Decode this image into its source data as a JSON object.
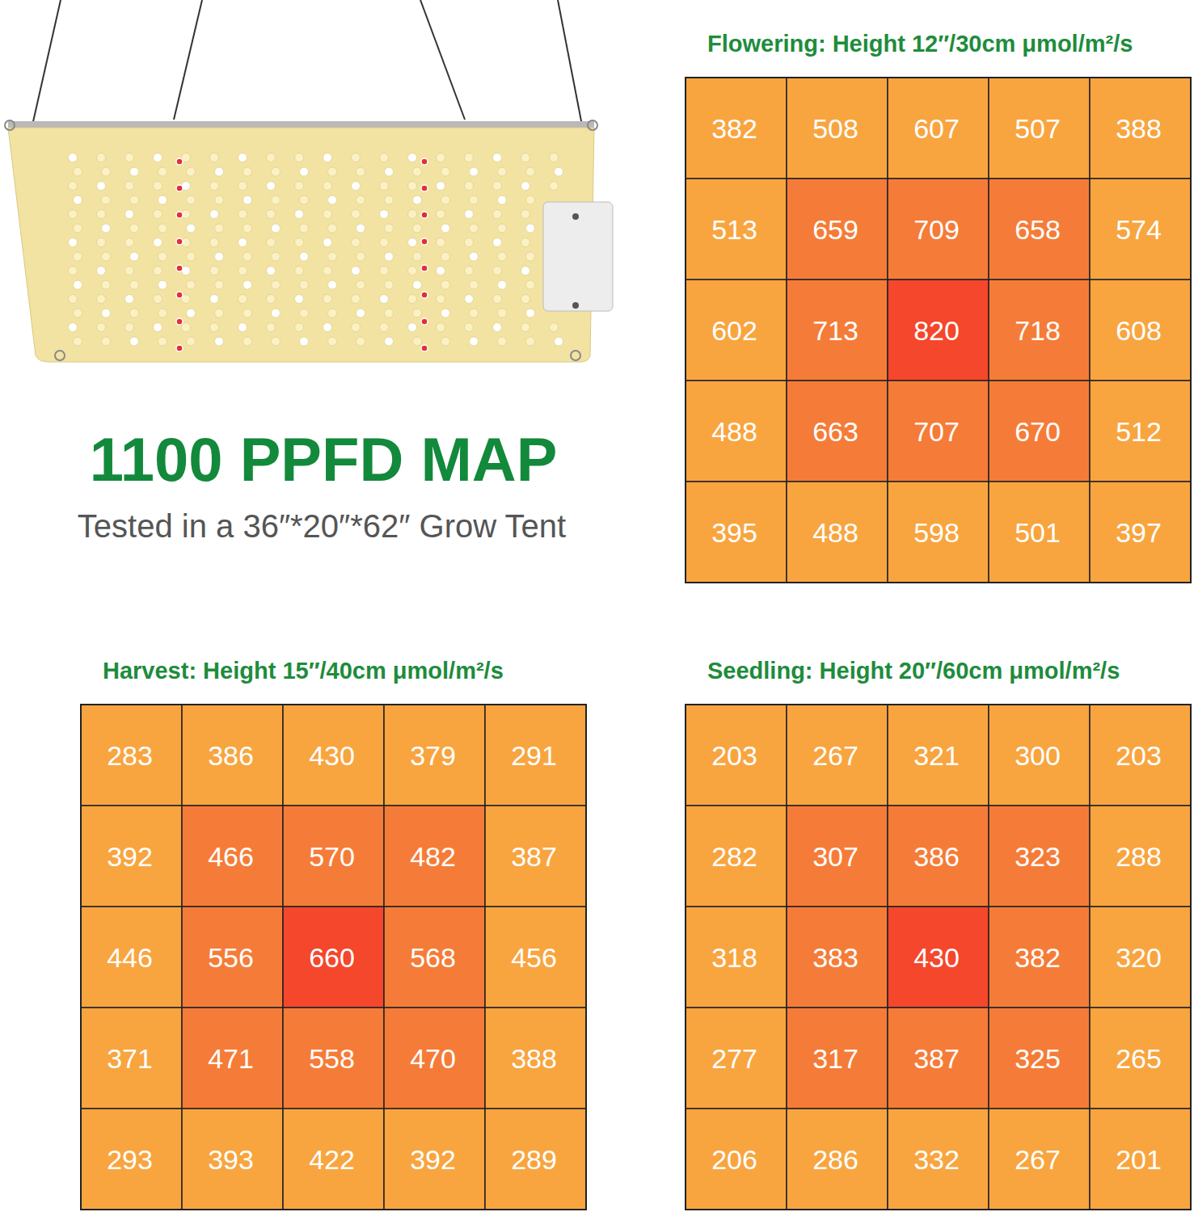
{
  "header": {
    "title": "1100 PPFD MAP",
    "subtitle": "Tested in a 36″*20″*62″ Grow Tent"
  },
  "chart_data": [
    {
      "type": "heatmap",
      "title": "Flowering: Height 12″/30cm μmol/m²/s",
      "data_labels": true,
      "tick_labels": false,
      "cells": [
        [
          382,
          508,
          607,
          507,
          388
        ],
        [
          513,
          659,
          709,
          658,
          574
        ],
        [
          602,
          713,
          820,
          718,
          608
        ],
        [
          488,
          663,
          707,
          670,
          512
        ],
        [
          395,
          488,
          598,
          501,
          397
        ]
      ],
      "colors": [
        [
          "#f8a540",
          "#f8a540",
          "#f8a540",
          "#f8a540",
          "#f8a540"
        ],
        [
          "#f8a540",
          "#f57c38",
          "#f57c38",
          "#f57c38",
          "#f8a540"
        ],
        [
          "#f8a540",
          "#f57c38",
          "#f4472c",
          "#f57c38",
          "#f8a540"
        ],
        [
          "#f8a540",
          "#f57c38",
          "#f57c38",
          "#f57c38",
          "#f8a540"
        ],
        [
          "#f8a540",
          "#f8a540",
          "#f8a540",
          "#f8a540",
          "#f8a540"
        ]
      ]
    },
    {
      "type": "heatmap",
      "title": "Harvest: Height 15″/40cm μmol/m²/s",
      "data_labels": true,
      "tick_labels": false,
      "cells": [
        [
          283,
          386,
          430,
          379,
          291
        ],
        [
          392,
          466,
          570,
          482,
          387
        ],
        [
          446,
          556,
          660,
          568,
          456
        ],
        [
          371,
          471,
          558,
          470,
          388
        ],
        [
          293,
          393,
          422,
          392,
          289
        ]
      ],
      "colors": [
        [
          "#f8a540",
          "#f8a540",
          "#f8a540",
          "#f8a540",
          "#f8a540"
        ],
        [
          "#f8a540",
          "#f57c38",
          "#f57c38",
          "#f57c38",
          "#f8a540"
        ],
        [
          "#f8a540",
          "#f57c38",
          "#f4472c",
          "#f57c38",
          "#f8a540"
        ],
        [
          "#f8a540",
          "#f57c38",
          "#f57c38",
          "#f57c38",
          "#f8a540"
        ],
        [
          "#f8a540",
          "#f8a540",
          "#f8a540",
          "#f8a540",
          "#f8a540"
        ]
      ]
    },
    {
      "type": "heatmap",
      "title": "Seedling: Height 20″/60cm μmol/m²/s",
      "data_labels": true,
      "tick_labels": false,
      "cells": [
        [
          203,
          267,
          321,
          300,
          203
        ],
        [
          282,
          307,
          386,
          323,
          288
        ],
        [
          318,
          383,
          430,
          382,
          320
        ],
        [
          277,
          317,
          387,
          325,
          265
        ],
        [
          206,
          286,
          332,
          267,
          201
        ]
      ],
      "colors": [
        [
          "#f8a540",
          "#f8a540",
          "#f8a540",
          "#f8a540",
          "#f8a540"
        ],
        [
          "#f8a540",
          "#f57c38",
          "#f57c38",
          "#f57c38",
          "#f8a540"
        ],
        [
          "#f8a540",
          "#f57c38",
          "#f4472c",
          "#f57c38",
          "#f8a540"
        ],
        [
          "#f8a540",
          "#f57c38",
          "#f57c38",
          "#f57c38",
          "#f8a540"
        ],
        [
          "#f8a540",
          "#f8a540",
          "#f8a540",
          "#f8a540",
          "#f8a540"
        ]
      ]
    }
  ]
}
